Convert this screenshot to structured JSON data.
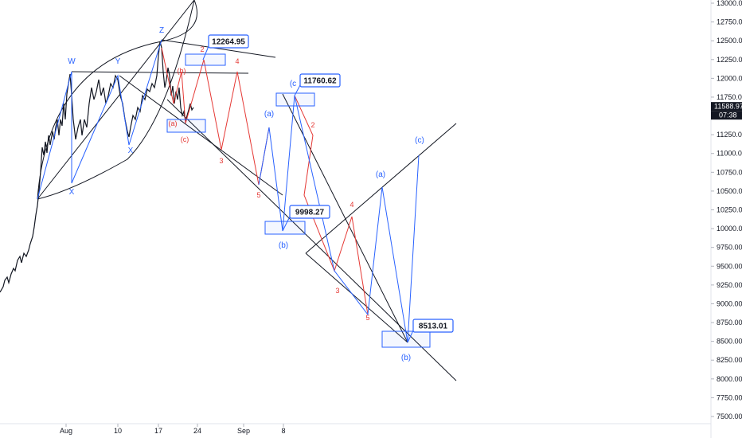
{
  "chart_data": {
    "type": "line",
    "title": "",
    "ylim": [
      7500,
      13000
    ],
    "y_ticks": [
      "13000.00",
      "12750.00",
      "12500.00",
      "12250.00",
      "12000.00",
      "11750.00",
      "11500.00",
      "11250.00",
      "11000.00",
      "10750.00",
      "10500.00",
      "10250.00",
      "10000.00",
      "9750.00",
      "9500.00",
      "9250.00",
      "9000.00",
      "8750.00",
      "8500.00",
      "8250.00",
      "8000.00",
      "7750.00",
      "7500.00"
    ],
    "x_ticks": [
      "Aug",
      "10",
      "17",
      "24",
      "Sep",
      "8"
    ],
    "last_price": "11588.97",
    "countdown": "07:38",
    "callouts": [
      "12264.95",
      "11760.62",
      "9998.27",
      "8513.01"
    ],
    "wave_labels_top": [
      "W",
      "Y",
      "Z"
    ],
    "wave_labels_bottom": [
      "X",
      "X"
    ],
    "red_labels": [
      "(b)",
      "(a)",
      "(c)",
      "2",
      "3",
      "4",
      "5",
      "2",
      "3",
      "4",
      "5"
    ],
    "blue_labels": [
      "(a)",
      "(b)",
      "(c",
      "(a)",
      "(b)",
      "(c)"
    ],
    "colors": {
      "red_path": "#e53935",
      "blue_path": "#2962ff",
      "price": "#131722",
      "badge": "#131722"
    }
  }
}
